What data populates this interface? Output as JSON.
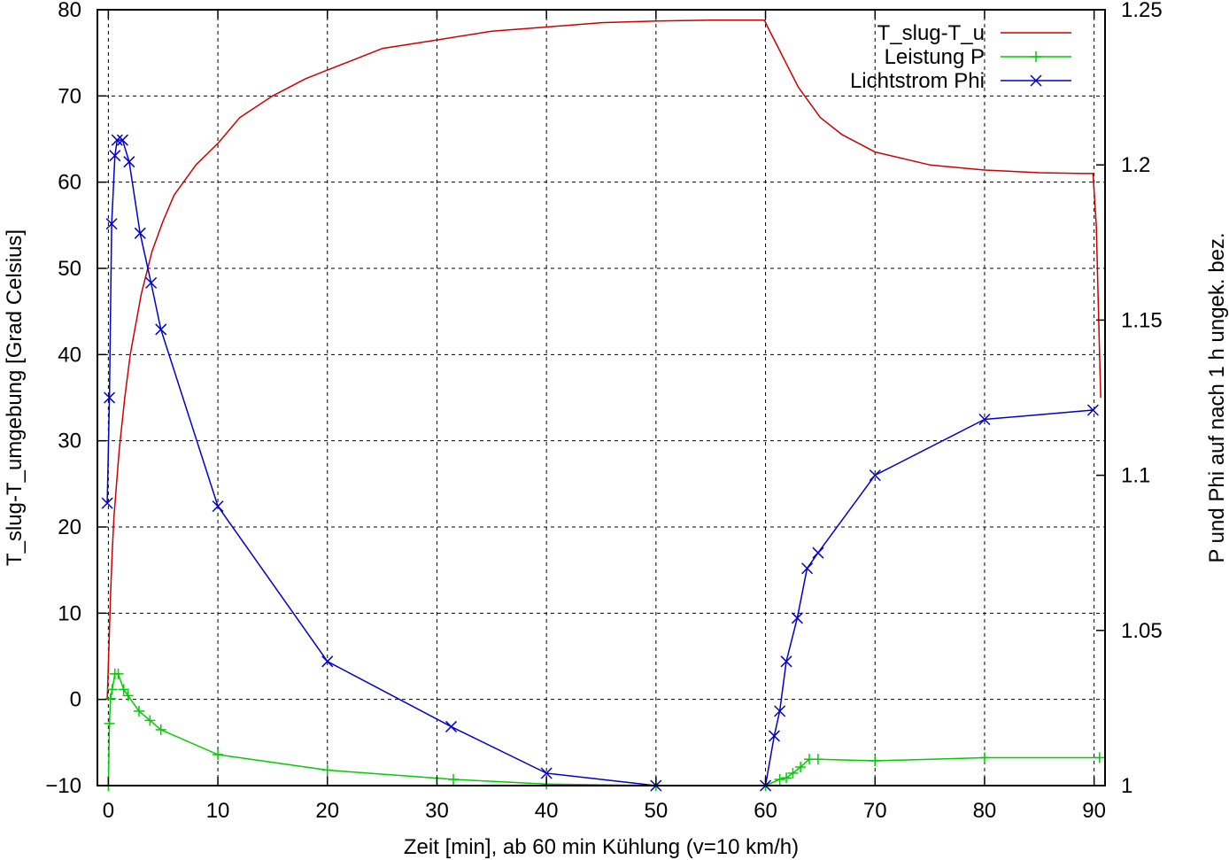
{
  "chart_data": {
    "type": "line",
    "title": "",
    "xlabel": "Zeit [min], ab 60 min Kühlung (v=10 km/h)",
    "ylabel": "T_slug-T_umgebung [Grad Celsius]",
    "y2label": "P und Phi auf nach 1 h ungek. bez.",
    "xlim": [
      -1,
      91
    ],
    "ylim": [
      -10,
      80
    ],
    "y2lim": [
      1.0,
      1.25
    ],
    "xticks": [
      0,
      10,
      20,
      30,
      40,
      50,
      60,
      70,
      80,
      90
    ],
    "yticks": [
      -10,
      0,
      10,
      20,
      30,
      40,
      50,
      60,
      70,
      80
    ],
    "y2ticks": [
      1,
      1.05,
      1.1,
      1.15,
      1.2,
      1.25
    ],
    "y2tick_labels": [
      "1",
      "1.05",
      "1.1",
      "1.15",
      "1.2",
      "1.25"
    ],
    "grid": true,
    "legend_position": "top-right",
    "series": [
      {
        "name": "T_slug-T_u",
        "axis": "left",
        "color": "#cc0000",
        "marker": "none",
        "x": [
          -0.1,
          0,
          0.1,
          0.2,
          0.35,
          0.5,
          0.75,
          1,
          1.5,
          2,
          2.5,
          3,
          4,
          5,
          6,
          8,
          10,
          12,
          15,
          18,
          20,
          22,
          25,
          30,
          35,
          40,
          45,
          50,
          55,
          58,
          59,
          59.9,
          60.2,
          61,
          62,
          63,
          65,
          67,
          70,
          75,
          80,
          85,
          89,
          89.9,
          90.2,
          90.4,
          90.6
        ],
        "y": [
          0,
          4,
          8,
          12,
          17,
          21,
          25,
          29,
          35,
          40,
          43.5,
          47,
          52,
          55.5,
          58.5,
          62,
          64.5,
          67.5,
          70,
          72,
          73,
          74,
          75.5,
          76.5,
          77.5,
          78,
          78.5,
          78.7,
          78.8,
          78.8,
          78.8,
          78.8,
          78,
          76,
          73.5,
          71,
          67.5,
          65.5,
          63.5,
          62,
          61.4,
          61.1,
          61,
          61,
          55,
          45,
          35
        ]
      },
      {
        "name": "Leistung P",
        "axis": "right",
        "color": "#00cc00",
        "marker": "plus",
        "x": [
          0,
          0.1,
          0.2,
          0.35,
          0.6,
          0.9,
          1.4,
          1.8,
          2.8,
          3.8,
          4.8,
          10,
          20,
          31.5,
          40,
          50,
          60,
          61.3,
          61.9,
          62.5,
          63.2,
          64,
          64.8,
          70,
          80,
          90.5
        ],
        "y": [
          1.0,
          1.02,
          1.028,
          1.031,
          1.036,
          1.036,
          1.031,
          1.029,
          1.024,
          1.021,
          1.018,
          1.01,
          1.005,
          1.002,
          1.0005,
          1.0,
          1.0,
          1.002,
          1.0025,
          1.004,
          1.006,
          1.0085,
          1.0085,
          1.008,
          1.009,
          1.009
        ]
      },
      {
        "name": "Lichtstrom Phi",
        "axis": "right",
        "color": "#0000cc",
        "marker": "cross",
        "x": [
          -0.1,
          0.1,
          0.3,
          0.6,
          0.8,
          1.3,
          1.9,
          2.9,
          3.9,
          4.8,
          10,
          20,
          31.3,
          40,
          50,
          60,
          60.8,
          61.3,
          61.9,
          62.9,
          63.8,
          64.8,
          70,
          80,
          89.9
        ],
        "y": [
          1.091,
          1.125,
          1.181,
          1.203,
          1.208,
          1.208,
          1.201,
          1.178,
          1.162,
          1.147,
          1.09,
          1.04,
          1.019,
          1.004,
          1.0,
          1.0,
          1.016,
          1.024,
          1.04,
          1.054,
          1.07,
          1.075,
          1.1,
          1.118,
          1.121
        ]
      }
    ]
  }
}
